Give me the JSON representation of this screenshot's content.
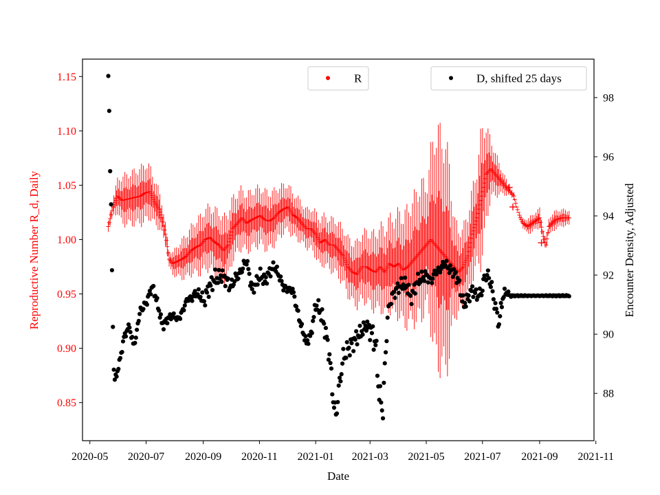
{
  "chart_data": {
    "type": "scatter",
    "xlabel": "Date",
    "ylabel_left": "Reproductive Number R_d, Daily",
    "ylabel_right": "Encounter Density, Adjusted",
    "left_color": "#ff0000",
    "right_color": "#000000",
    "x_ticks": [
      "2020-05",
      "2020-07",
      "2020-09",
      "2020-11",
      "2021-01",
      "2021-03",
      "2021-05",
      "2021-07",
      "2021-09",
      "2021-11"
    ],
    "x_tick_values": [
      0,
      61,
      123,
      184,
      245,
      304,
      365,
      426,
      488,
      549
    ],
    "x_range": [
      -8,
      547
    ],
    "ylim_left": [
      0.815,
      1.166
    ],
    "ylim_right": [
      86.4,
      99.3
    ],
    "left_ticks": [
      "0.85",
      "0.90",
      "0.95",
      "1.00",
      "1.05",
      "1.10",
      "1.15"
    ],
    "left_tick_values": [
      0.85,
      0.9,
      0.95,
      1.0,
      1.05,
      1.1,
      1.15
    ],
    "right_ticks": [
      "88",
      "90",
      "92",
      "94",
      "96",
      "98"
    ],
    "right_tick_values": [
      88,
      90,
      92,
      94,
      96,
      98
    ],
    "legend": {
      "r_label": "R",
      "d_label": "D, shifted 25 days"
    },
    "r_anchors": [
      [
        20,
        1.012
      ],
      [
        25,
        1.03
      ],
      [
        30,
        1.04
      ],
      [
        35,
        1.036
      ],
      [
        45,
        1.038
      ],
      [
        55,
        1.04
      ],
      [
        60,
        1.043
      ],
      [
        65,
        1.044
      ],
      [
        70,
        1.035
      ],
      [
        75,
        1.028
      ],
      [
        78,
        1.02
      ],
      [
        82,
        1.005
      ],
      [
        86,
        0.982
      ],
      [
        90,
        0.978
      ],
      [
        95,
        0.98
      ],
      [
        100,
        0.982
      ],
      [
        105,
        0.985
      ],
      [
        110,
        0.99
      ],
      [
        115,
        0.993
      ],
      [
        120,
        0.995
      ],
      [
        125,
        1.0
      ],
      [
        130,
        1.002
      ],
      [
        135,
        0.998
      ],
      [
        140,
        0.995
      ],
      [
        145,
        0.99
      ],
      [
        150,
        0.995
      ],
      [
        155,
        1.01
      ],
      [
        160,
        1.015
      ],
      [
        165,
        1.02
      ],
      [
        170,
        1.015
      ],
      [
        175,
        1.018
      ],
      [
        180,
        1.02
      ],
      [
        185,
        1.022
      ],
      [
        190,
        1.018
      ],
      [
        195,
        1.017
      ],
      [
        200,
        1.02
      ],
      [
        205,
        1.025
      ],
      [
        210,
        1.028
      ],
      [
        215,
        1.03
      ],
      [
        220,
        1.023
      ],
      [
        225,
        1.02
      ],
      [
        230,
        1.015
      ],
      [
        235,
        1.01
      ],
      [
        240,
        1.01
      ],
      [
        245,
        1.005
      ],
      [
        250,
        0.997
      ],
      [
        255,
        1.0
      ],
      [
        260,
        0.995
      ],
      [
        265,
        0.995
      ],
      [
        270,
        0.99
      ],
      [
        275,
        0.985
      ],
      [
        280,
        0.975
      ],
      [
        285,
        0.97
      ],
      [
        290,
        0.968
      ],
      [
        295,
        0.975
      ],
      [
        300,
        0.975
      ],
      [
        305,
        0.972
      ],
      [
        310,
        0.97
      ],
      [
        315,
        0.975
      ],
      [
        320,
        0.97
      ],
      [
        325,
        0.978
      ],
      [
        330,
        0.975
      ],
      [
        335,
        0.978
      ],
      [
        340,
        0.972
      ],
      [
        345,
        0.975
      ],
      [
        350,
        0.98
      ],
      [
        355,
        0.985
      ],
      [
        360,
        0.99
      ],
      [
        365,
        0.995
      ],
      [
        370,
        1.0
      ],
      [
        375,
        0.995
      ],
      [
        380,
        0.99
      ],
      [
        385,
        0.985
      ],
      [
        390,
        0.98
      ],
      [
        395,
        0.975
      ],
      [
        400,
        0.97
      ],
      [
        405,
        0.975
      ],
      [
        410,
        0.985
      ],
      [
        415,
        1.005
      ],
      [
        420,
        1.02
      ],
      [
        425,
        1.04
      ],
      [
        430,
        1.06
      ],
      [
        435,
        1.065
      ],
      [
        440,
        1.06
      ],
      [
        445,
        1.055
      ],
      [
        450,
        1.05
      ],
      [
        455,
        1.045
      ],
      [
        460,
        1.04
      ],
      [
        463,
        1.03
      ],
      [
        467,
        1.02
      ],
      [
        470,
        1.015
      ],
      [
        475,
        1.012
      ],
      [
        480,
        1.015
      ],
      [
        485,
        1.018
      ],
      [
        488,
        1.02
      ],
      [
        492,
        1.003
      ],
      [
        495,
        0.995
      ],
      [
        498,
        1.012
      ],
      [
        505,
        1.018
      ],
      [
        512,
        1.02
      ],
      [
        520,
        1.02
      ]
    ],
    "r_amp_anchors": [
      [
        20,
        0.005
      ],
      [
        25,
        0.01
      ],
      [
        35,
        0.025
      ],
      [
        60,
        0.03
      ],
      [
        75,
        0.02
      ],
      [
        85,
        0.008
      ],
      [
        100,
        0.02
      ],
      [
        120,
        0.03
      ],
      [
        140,
        0.035
      ],
      [
        170,
        0.03
      ],
      [
        195,
        0.03
      ],
      [
        210,
        0.025
      ],
      [
        235,
        0.02
      ],
      [
        250,
        0.025
      ],
      [
        280,
        0.03
      ],
      [
        295,
        0.035
      ],
      [
        310,
        0.04
      ],
      [
        330,
        0.05
      ],
      [
        345,
        0.06
      ],
      [
        360,
        0.07
      ],
      [
        365,
        0.06
      ],
      [
        375,
        0.12
      ],
      [
        385,
        0.12
      ],
      [
        390,
        0.1
      ],
      [
        395,
        0.05
      ],
      [
        405,
        0.04
      ],
      [
        420,
        0.05
      ],
      [
        425,
        0.07
      ],
      [
        435,
        0.03
      ],
      [
        445,
        0.015
      ],
      [
        455,
        0.005
      ],
      [
        465,
        0.002
      ],
      [
        475,
        0.008
      ],
      [
        488,
        0.01
      ],
      [
        495,
        0.005
      ],
      [
        500,
        0.01
      ],
      [
        520,
        0.008
      ]
    ],
    "r_outliers": [
      [
        455,
        1.048
      ],
      [
        459,
        1.03
      ],
      [
        490,
        0.997
      ]
    ],
    "d_anchors": [
      [
        20,
        98.7
      ],
      [
        21,
        97.6
      ],
      [
        22,
        95.5
      ],
      [
        23,
        94.4
      ],
      [
        24,
        92.1
      ],
      [
        25,
        90.3
      ],
      [
        26,
        88.8
      ],
      [
        27,
        88.5
      ],
      [
        29,
        88.6
      ],
      [
        31,
        88.9
      ],
      [
        33,
        89.2
      ],
      [
        35,
        89.5
      ],
      [
        37,
        89.9
      ],
      [
        40,
        90.1
      ],
      [
        43,
        90.3
      ],
      [
        45,
        89.9
      ],
      [
        47,
        89.7
      ],
      [
        50,
        89.8
      ],
      [
        52,
        90.4
      ],
      [
        55,
        90.8
      ],
      [
        60,
        91.0
      ],
      [
        63,
        91.2
      ],
      [
        66,
        91.5
      ],
      [
        68,
        91.6
      ],
      [
        72,
        91.2
      ],
      [
        75,
        90.8
      ],
      [
        78,
        90.4
      ],
      [
        80,
        90.3
      ],
      [
        84,
        90.5
      ],
      [
        88,
        90.6
      ],
      [
        92,
        90.6
      ],
      [
        95,
        90.5
      ],
      [
        98,
        90.6
      ],
      [
        102,
        90.9
      ],
      [
        106,
        91.2
      ],
      [
        110,
        91.2
      ],
      [
        115,
        91.4
      ],
      [
        120,
        91.3
      ],
      [
        124,
        91.1
      ],
      [
        128,
        91.5
      ],
      [
        132,
        91.7
      ],
      [
        136,
        91.9
      ],
      [
        140,
        91.9
      ],
      [
        143,
        92.0
      ],
      [
        146,
        91.9
      ],
      [
        149,
        91.8
      ],
      [
        152,
        91.6
      ],
      [
        155,
        91.7
      ],
      [
        158,
        91.9
      ],
      [
        162,
        92.0
      ],
      [
        165,
        92.2
      ],
      [
        170,
        92.5
      ],
      [
        173,
        92.0
      ],
      [
        176,
        91.5
      ],
      [
        180,
        91.7
      ],
      [
        185,
        92.0
      ],
      [
        190,
        91.8
      ],
      [
        195,
        92.1
      ],
      [
        200,
        92.3
      ],
      [
        205,
        92.0
      ],
      [
        210,
        91.6
      ],
      [
        215,
        91.5
      ],
      [
        220,
        91.5
      ],
      [
        225,
        90.8
      ],
      [
        230,
        90.2
      ],
      [
        235,
        89.7
      ],
      [
        240,
        90.0
      ],
      [
        245,
        91.0
      ],
      [
        250,
        90.8
      ],
      [
        255,
        90.2
      ],
      [
        260,
        89.3
      ],
      [
        263,
        88.2
      ],
      [
        265,
        87.5
      ],
      [
        267,
        87.3
      ],
      [
        269,
        87.8
      ],
      [
        272,
        88.6
      ],
      [
        275,
        89.2
      ],
      [
        280,
        89.5
      ],
      [
        285,
        89.7
      ],
      [
        290,
        89.9
      ],
      [
        295,
        90.1
      ],
      [
        300,
        90.3
      ],
      [
        305,
        90.1
      ],
      [
        310,
        89.7
      ],
      [
        313,
        88.4
      ],
      [
        315,
        87.7
      ],
      [
        318,
        87.5
      ],
      [
        320,
        88.8
      ],
      [
        323,
        90.6
      ],
      [
        326,
        91.1
      ],
      [
        330,
        91.4
      ],
      [
        335,
        91.6
      ],
      [
        340,
        91.7
      ],
      [
        345,
        91.6
      ],
      [
        348,
        91.2
      ],
      [
        352,
        91.5
      ],
      [
        355,
        91.8
      ],
      [
        360,
        91.9
      ],
      [
        365,
        92.0
      ],
      [
        370,
        91.8
      ],
      [
        375,
        92.1
      ],
      [
        380,
        92.2
      ],
      [
        385,
        92.4
      ],
      [
        390,
        92.2
      ],
      [
        395,
        92.1
      ],
      [
        400,
        91.8
      ],
      [
        403,
        91.3
      ],
      [
        406,
        91.0
      ],
      [
        410,
        91.2
      ],
      [
        415,
        91.5
      ],
      [
        420,
        91.3
      ],
      [
        425,
        91.4
      ],
      [
        428,
        91.9
      ],
      [
        432,
        92.0
      ],
      [
        436,
        91.6
      ],
      [
        438,
        91.2
      ],
      [
        441,
        90.8
      ],
      [
        444,
        90.3
      ],
      [
        446,
        90.9
      ],
      [
        448,
        91.2
      ],
      [
        450,
        91.4
      ],
      [
        453,
        91.4
      ],
      [
        456,
        91.3
      ],
      [
        460,
        91.3
      ],
      [
        520,
        91.3
      ]
    ],
    "d_scatter_anchors": [
      [
        20,
        0.05
      ],
      [
        26,
        0.08
      ],
      [
        60,
        0.2
      ],
      [
        95,
        0.1
      ],
      [
        130,
        0.3
      ],
      [
        200,
        0.2
      ],
      [
        240,
        0.15
      ],
      [
        262,
        0.5
      ],
      [
        270,
        0.5
      ],
      [
        300,
        0.2
      ],
      [
        315,
        0.8
      ],
      [
        325,
        0.3
      ],
      [
        380,
        0.2
      ],
      [
        400,
        0.2
      ],
      [
        440,
        0.3
      ],
      [
        458,
        0.02
      ],
      [
        520,
        0.02
      ]
    ]
  }
}
